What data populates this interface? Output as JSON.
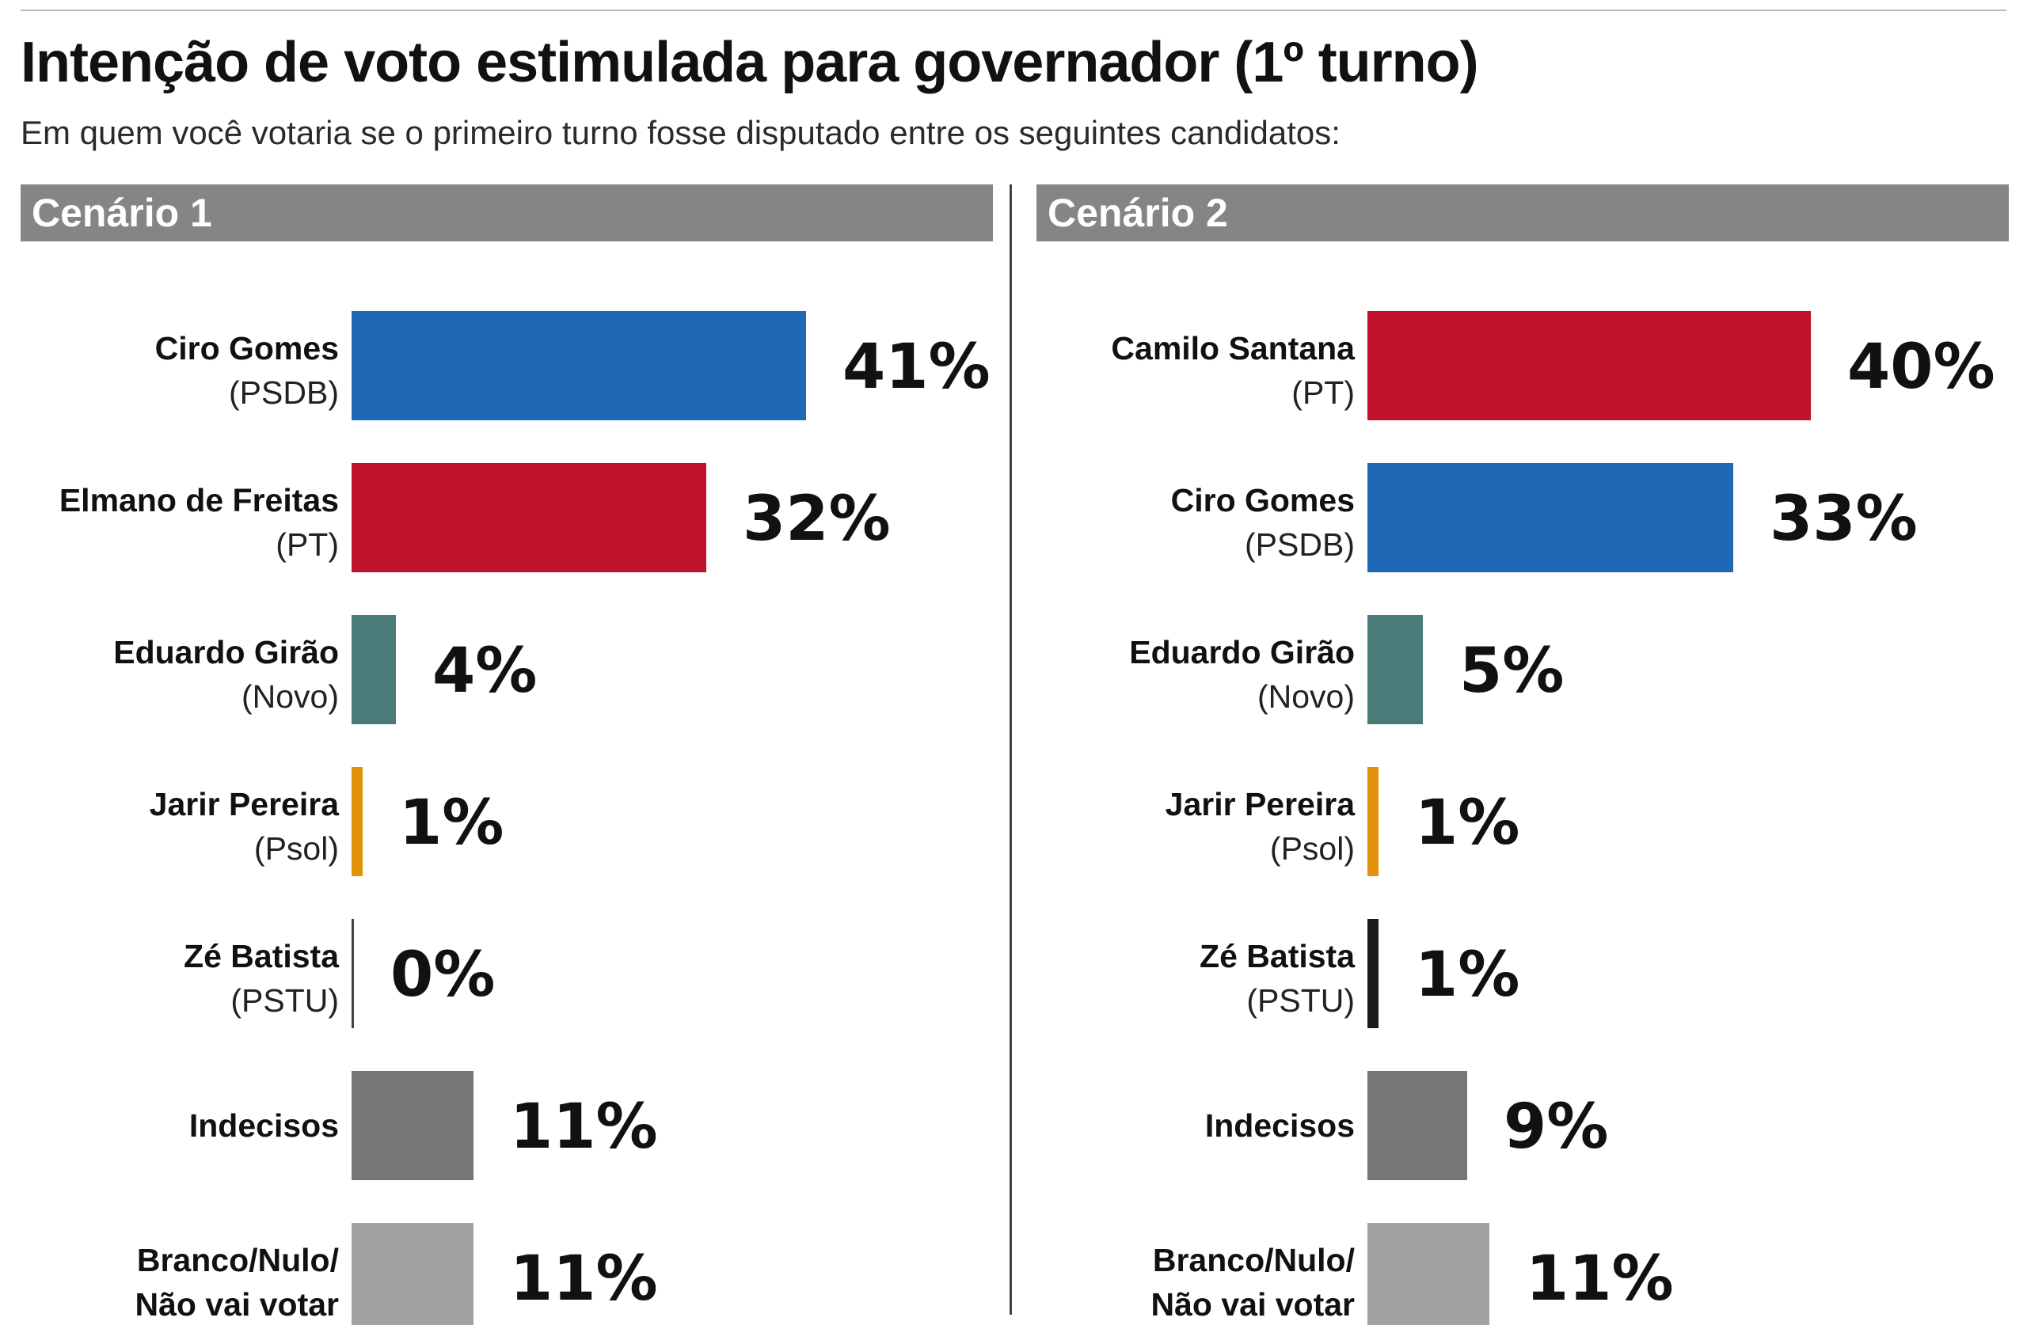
{
  "title": "Intenção de voto estimulada para governador (1º turno)",
  "subtitle": "Em quem você votaria se o primeiro turno fosse disputado entre os seguintes candidatos:",
  "chart_data": [
    {
      "type": "bar",
      "orientation": "horizontal",
      "title": "Cenário 1",
      "xlim": [
        0,
        45
      ],
      "categories": [
        {
          "name": "Ciro Gomes",
          "party": "(PSDB)"
        },
        {
          "name": "Elmano de Freitas",
          "party": "(PT)"
        },
        {
          "name": "Eduardo Girão",
          "party": "(Novo)"
        },
        {
          "name": "Jarir Pereira",
          "party": "(Psol)"
        },
        {
          "name": "Zé Batista",
          "party": "(PSTU)"
        },
        {
          "name": "Indecisos",
          "party": ""
        },
        {
          "name": "Branco/Nulo/",
          "party": "Não vai votar",
          "party_bold": true
        }
      ],
      "values": [
        41,
        32,
        4,
        1,
        0,
        11,
        11
      ],
      "labels": [
        "41%",
        "32%",
        "4%",
        "1%",
        "0%",
        "11%",
        "11%"
      ],
      "colors": [
        "#1f68b3",
        "#c1122b",
        "#4a7b78",
        "#e0920b",
        "#444444",
        "#767676",
        "#a2a2a2"
      ]
    },
    {
      "type": "bar",
      "orientation": "horizontal",
      "title": "Cenário 2",
      "xlim": [
        0,
        45
      ],
      "categories": [
        {
          "name": "Camilo Santana",
          "party": "(PT)"
        },
        {
          "name": "Ciro Gomes",
          "party": "(PSDB)"
        },
        {
          "name": "Eduardo Girão",
          "party": "(Novo)"
        },
        {
          "name": "Jarir Pereira",
          "party": "(Psol)"
        },
        {
          "name": "Zé Batista",
          "party": "(PSTU)"
        },
        {
          "name": "Indecisos",
          "party": ""
        },
        {
          "name": "Branco/Nulo/",
          "party": "Não vai votar",
          "party_bold": true
        }
      ],
      "values": [
        40,
        33,
        5,
        1,
        1,
        9,
        11
      ],
      "labels": [
        "40%",
        "33%",
        "5%",
        "1%",
        "1%",
        "9%",
        "11%"
      ],
      "colors": [
        "#c1122b",
        "#1f68b3",
        "#4a7b78",
        "#e0920b",
        "#1a1a1a",
        "#767676",
        "#a2a2a2"
      ]
    }
  ]
}
